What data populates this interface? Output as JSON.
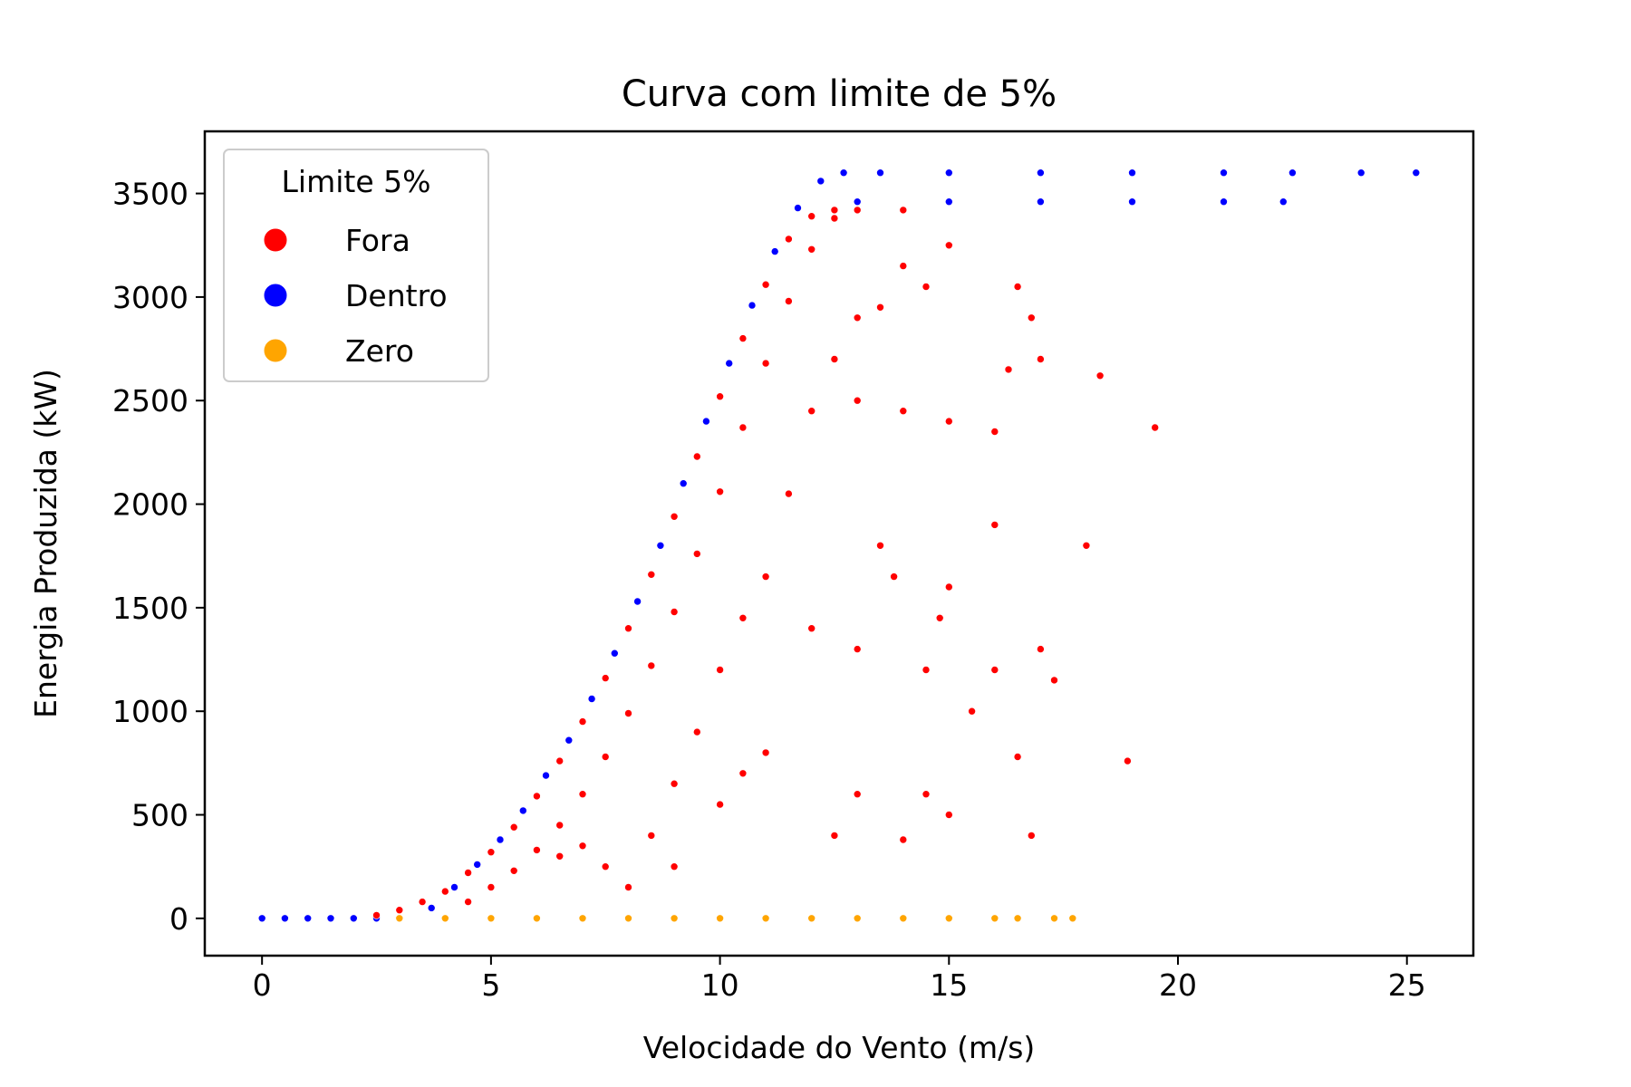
{
  "chart_data": {
    "type": "scatter",
    "title": "Curva com limite de 5%",
    "xlabel": "Velocidade do Vento (m/s)",
    "ylabel": "Energia Produzida (kW)",
    "xlim": [
      -1.25,
      26.45
    ],
    "ylim": [
      -180,
      3800
    ],
    "xticks": [
      0,
      5,
      10,
      15,
      20,
      25
    ],
    "xtick_labels": [
      "0",
      "5",
      "10",
      "15",
      "20",
      "25"
    ],
    "yticks": [
      0,
      500,
      1000,
      1500,
      2000,
      2500,
      3000,
      3500
    ],
    "ytick_labels": [
      "0",
      "500",
      "1000",
      "1500",
      "2000",
      "2500",
      "3000",
      "3500"
    ],
    "grid": false,
    "legend": {
      "title": "Limite 5%",
      "placement": "upper-left",
      "entries": [
        {
          "label": "Fora",
          "color": "#ff0000"
        },
        {
          "label": "Dentro",
          "color": "#0000ff"
        },
        {
          "label": "Zero",
          "color": "#ffa500"
        }
      ]
    },
    "series": [
      {
        "name": "Dentro",
        "color": "#0000ff",
        "points": [
          [
            0.0,
            0
          ],
          [
            0.5,
            0
          ],
          [
            1.0,
            0
          ],
          [
            1.5,
            0
          ],
          [
            2.0,
            0
          ],
          [
            2.5,
            0
          ],
          [
            3.0,
            0
          ],
          [
            3.7,
            50
          ],
          [
            4.2,
            150
          ],
          [
            4.7,
            260
          ],
          [
            5.2,
            380
          ],
          [
            5.7,
            520
          ],
          [
            6.2,
            690
          ],
          [
            6.7,
            860
          ],
          [
            7.2,
            1060
          ],
          [
            7.7,
            1280
          ],
          [
            8.2,
            1530
          ],
          [
            8.7,
            1800
          ],
          [
            9.2,
            2100
          ],
          [
            9.7,
            2400
          ],
          [
            10.2,
            2680
          ],
          [
            10.7,
            2960
          ],
          [
            11.2,
            3220
          ],
          [
            11.7,
            3430
          ],
          [
            12.2,
            3560
          ],
          [
            12.7,
            3600
          ],
          [
            13.5,
            3600
          ],
          [
            15.0,
            3600
          ],
          [
            17.0,
            3600
          ],
          [
            19.0,
            3600
          ],
          [
            21.0,
            3600
          ],
          [
            22.5,
            3600
          ],
          [
            24.0,
            3600
          ],
          [
            25.2,
            3600
          ],
          [
            13.0,
            3460
          ],
          [
            15.0,
            3460
          ],
          [
            17.0,
            3460
          ],
          [
            19.0,
            3460
          ],
          [
            21.0,
            3460
          ],
          [
            22.3,
            3460
          ]
        ]
      },
      {
        "name": "Fora",
        "color": "#ff0000",
        "points": [
          [
            2.5,
            15
          ],
          [
            3.0,
            40
          ],
          [
            3.5,
            80
          ],
          [
            4.0,
            130
          ],
          [
            4.5,
            220
          ],
          [
            5.0,
            320
          ],
          [
            5.5,
            440
          ],
          [
            6.0,
            590
          ],
          [
            6.5,
            760
          ],
          [
            7.0,
            950
          ],
          [
            7.5,
            1160
          ],
          [
            8.0,
            1400
          ],
          [
            8.5,
            1660
          ],
          [
            9.0,
            1940
          ],
          [
            9.5,
            2230
          ],
          [
            10.0,
            2520
          ],
          [
            10.5,
            2800
          ],
          [
            11.0,
            3060
          ],
          [
            11.5,
            3280
          ],
          [
            12.0,
            3390
          ],
          [
            12.5,
            3420
          ],
          [
            13.0,
            3420
          ],
          [
            14.0,
            3420
          ],
          [
            4.5,
            80
          ],
          [
            5.0,
            150
          ],
          [
            5.5,
            230
          ],
          [
            6.0,
            330
          ],
          [
            6.5,
            450
          ],
          [
            7.0,
            600
          ],
          [
            7.5,
            780
          ],
          [
            8.0,
            990
          ],
          [
            8.5,
            1220
          ],
          [
            9.0,
            1480
          ],
          [
            9.5,
            1760
          ],
          [
            10.0,
            2060
          ],
          [
            10.5,
            2370
          ],
          [
            11.0,
            2680
          ],
          [
            11.5,
            2980
          ],
          [
            12.0,
            3230
          ],
          [
            12.5,
            3380
          ],
          [
            6.5,
            300
          ],
          [
            7.0,
            350
          ],
          [
            7.5,
            250
          ],
          [
            8.0,
            150
          ],
          [
            8.5,
            400
          ],
          [
            9.0,
            650
          ],
          [
            9.5,
            900
          ],
          [
            10.0,
            1200
          ],
          [
            10.5,
            1450
          ],
          [
            11.0,
            1650
          ],
          [
            11.5,
            2050
          ],
          [
            12.0,
            2450
          ],
          [
            12.5,
            2700
          ],
          [
            13.0,
            2900
          ],
          [
            13.5,
            2950
          ],
          [
            14.0,
            3150
          ],
          [
            14.5,
            3050
          ],
          [
            15.0,
            3250
          ],
          [
            13.0,
            2500
          ],
          [
            14.0,
            2450
          ],
          [
            15.0,
            2400
          ],
          [
            16.0,
            2350
          ],
          [
            17.0,
            2700
          ],
          [
            18.3,
            2620
          ],
          [
            19.5,
            2370
          ],
          [
            16.5,
            3050
          ],
          [
            16.8,
            2900
          ],
          [
            16.3,
            2650
          ],
          [
            13.5,
            1800
          ],
          [
            15.0,
            1600
          ],
          [
            16.0,
            1900
          ],
          [
            17.0,
            1300
          ],
          [
            18.0,
            1800
          ],
          [
            18.9,
            760
          ],
          [
            15.5,
            1000
          ],
          [
            16.5,
            780
          ],
          [
            16.8,
            400
          ],
          [
            14.5,
            600
          ],
          [
            13.0,
            600
          ],
          [
            12.5,
            400
          ],
          [
            14.0,
            380
          ],
          [
            15.0,
            500
          ],
          [
            11.0,
            800
          ],
          [
            12.0,
            1400
          ],
          [
            13.0,
            1300
          ],
          [
            14.5,
            1200
          ],
          [
            16.0,
            1200
          ],
          [
            17.3,
            1150
          ],
          [
            10.5,
            700
          ],
          [
            9.0,
            250
          ],
          [
            10.0,
            550
          ],
          [
            13.8,
            1650
          ],
          [
            14.8,
            1450
          ]
        ]
      },
      {
        "name": "Zero",
        "color": "#ffa500",
        "points": [
          [
            3.0,
            0
          ],
          [
            4.0,
            0
          ],
          [
            5.0,
            0
          ],
          [
            6.0,
            0
          ],
          [
            7.0,
            0
          ],
          [
            8.0,
            0
          ],
          [
            9.0,
            0
          ],
          [
            10.0,
            0
          ],
          [
            11.0,
            0
          ],
          [
            12.0,
            0
          ],
          [
            13.0,
            0
          ],
          [
            14.0,
            0
          ],
          [
            15.0,
            0
          ],
          [
            16.0,
            0
          ],
          [
            16.5,
            0
          ],
          [
            17.3,
            0
          ],
          [
            17.7,
            0
          ]
        ]
      }
    ]
  }
}
